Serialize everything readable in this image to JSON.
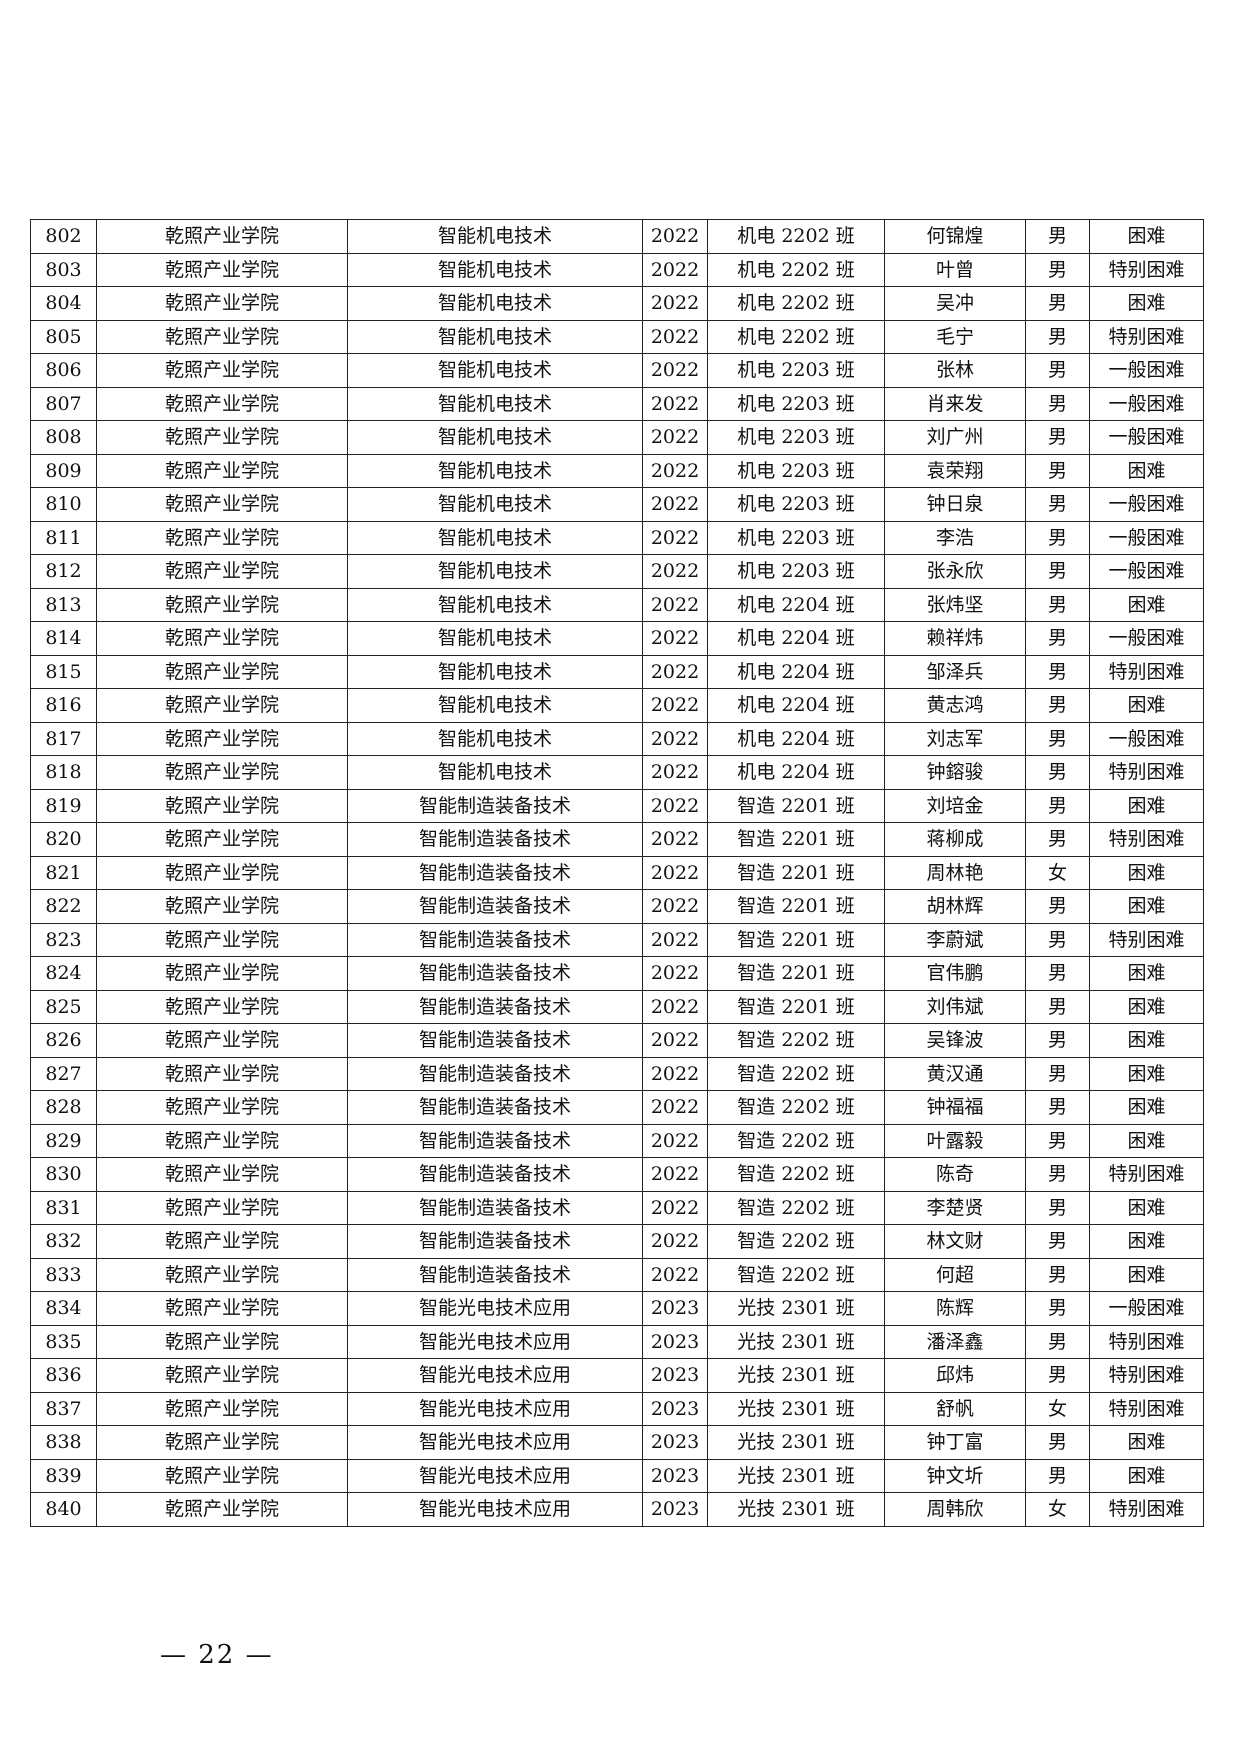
{
  "rows": [
    [
      "802",
      "乾照产业学院",
      "智能机电技术",
      "2022",
      "机电 2202 班",
      "何锦煌",
      "男",
      "困难"
    ],
    [
      "803",
      "乾照产业学院",
      "智能机电技术",
      "2022",
      "机电 2202 班",
      "叶曾",
      "男",
      "特别困难"
    ],
    [
      "804",
      "乾照产业学院",
      "智能机电技术",
      "2022",
      "机电 2202 班",
      "吴冲",
      "男",
      "困难"
    ],
    [
      "805",
      "乾照产业学院",
      "智能机电技术",
      "2022",
      "机电 2202 班",
      "毛宁",
      "男",
      "特别困难"
    ],
    [
      "806",
      "乾照产业学院",
      "智能机电技术",
      "2022",
      "机电 2203 班",
      "张林",
      "男",
      "一般困难"
    ],
    [
      "807",
      "乾照产业学院",
      "智能机电技术",
      "2022",
      "机电 2203 班",
      "肖来发",
      "男",
      "一般困难"
    ],
    [
      "808",
      "乾照产业学院",
      "智能机电技术",
      "2022",
      "机电 2203 班",
      "刘广州",
      "男",
      "一般困难"
    ],
    [
      "809",
      "乾照产业学院",
      "智能机电技术",
      "2022",
      "机电 2203 班",
      "袁荣翔",
      "男",
      "困难"
    ],
    [
      "810",
      "乾照产业学院",
      "智能机电技术",
      "2022",
      "机电 2203 班",
      "钟日泉",
      "男",
      "一般困难"
    ],
    [
      "811",
      "乾照产业学院",
      "智能机电技术",
      "2022",
      "机电 2203 班",
      "李浩",
      "男",
      "一般困难"
    ],
    [
      "812",
      "乾照产业学院",
      "智能机电技术",
      "2022",
      "机电 2203 班",
      "张永欣",
      "男",
      "一般困难"
    ],
    [
      "813",
      "乾照产业学院",
      "智能机电技术",
      "2022",
      "机电 2204 班",
      "张炜坚",
      "男",
      "困难"
    ],
    [
      "814",
      "乾照产业学院",
      "智能机电技术",
      "2022",
      "机电 2204 班",
      "赖祥炜",
      "男",
      "一般困难"
    ],
    [
      "815",
      "乾照产业学院",
      "智能机电技术",
      "2022",
      "机电 2204 班",
      "邹泽兵",
      "男",
      "特别困难"
    ],
    [
      "816",
      "乾照产业学院",
      "智能机电技术",
      "2022",
      "机电 2204 班",
      "黄志鸿",
      "男",
      "困难"
    ],
    [
      "817",
      "乾照产业学院",
      "智能机电技术",
      "2022",
      "机电 2204 班",
      "刘志军",
      "男",
      "一般困难"
    ],
    [
      "818",
      "乾照产业学院",
      "智能机电技术",
      "2022",
      "机电 2204 班",
      "钟鎔骏",
      "男",
      "特别困难"
    ],
    [
      "819",
      "乾照产业学院",
      "智能制造装备技术",
      "2022",
      "智造 2201 班",
      "刘培金",
      "男",
      "困难"
    ],
    [
      "820",
      "乾照产业学院",
      "智能制造装备技术",
      "2022",
      "智造 2201 班",
      "蒋柳成",
      "男",
      "特别困难"
    ],
    [
      "821",
      "乾照产业学院",
      "智能制造装备技术",
      "2022",
      "智造 2201 班",
      "周林艳",
      "女",
      "困难"
    ],
    [
      "822",
      "乾照产业学院",
      "智能制造装备技术",
      "2022",
      "智造 2201 班",
      "胡林辉",
      "男",
      "困难"
    ],
    [
      "823",
      "乾照产业学院",
      "智能制造装备技术",
      "2022",
      "智造 2201 班",
      "李蔚斌",
      "男",
      "特别困难"
    ],
    [
      "824",
      "乾照产业学院",
      "智能制造装备技术",
      "2022",
      "智造 2201 班",
      "官伟鹏",
      "男",
      "困难"
    ],
    [
      "825",
      "乾照产业学院",
      "智能制造装备技术",
      "2022",
      "智造 2201 班",
      "刘伟斌",
      "男",
      "困难"
    ],
    [
      "826",
      "乾照产业学院",
      "智能制造装备技术",
      "2022",
      "智造 2202 班",
      "吴锋波",
      "男",
      "困难"
    ],
    [
      "827",
      "乾照产业学院",
      "智能制造装备技术",
      "2022",
      "智造 2202 班",
      "黄汉通",
      "男",
      "困难"
    ],
    [
      "828",
      "乾照产业学院",
      "智能制造装备技术",
      "2022",
      "智造 2202 班",
      "钟福福",
      "男",
      "困难"
    ],
    [
      "829",
      "乾照产业学院",
      "智能制造装备技术",
      "2022",
      "智造 2202 班",
      "叶露毅",
      "男",
      "困难"
    ],
    [
      "830",
      "乾照产业学院",
      "智能制造装备技术",
      "2022",
      "智造 2202 班",
      "陈奇",
      "男",
      "特别困难"
    ],
    [
      "831",
      "乾照产业学院",
      "智能制造装备技术",
      "2022",
      "智造 2202 班",
      "李楚贤",
      "男",
      "困难"
    ],
    [
      "832",
      "乾照产业学院",
      "智能制造装备技术",
      "2022",
      "智造 2202 班",
      "林文财",
      "男",
      "困难"
    ],
    [
      "833",
      "乾照产业学院",
      "智能制造装备技术",
      "2022",
      "智造 2202 班",
      "何超",
      "男",
      "困难"
    ],
    [
      "834",
      "乾照产业学院",
      "智能光电技术应用",
      "2023",
      "光技 2301 班",
      "陈辉",
      "男",
      "一般困难"
    ],
    [
      "835",
      "乾照产业学院",
      "智能光电技术应用",
      "2023",
      "光技 2301 班",
      "潘泽鑫",
      "男",
      "特别困难"
    ],
    [
      "836",
      "乾照产业学院",
      "智能光电技术应用",
      "2023",
      "光技 2301 班",
      "邱炜",
      "男",
      "特别困难"
    ],
    [
      "837",
      "乾照产业学院",
      "智能光电技术应用",
      "2023",
      "光技 2301 班",
      "舒帆",
      "女",
      "特别困难"
    ],
    [
      "838",
      "乾照产业学院",
      "智能光电技术应用",
      "2023",
      "光技 2301 班",
      "钟丁富",
      "男",
      "困难"
    ],
    [
      "839",
      "乾照产业学院",
      "智能光电技术应用",
      "2023",
      "光技 2301 班",
      "钟文圻",
      "男",
      "困难"
    ],
    [
      "840",
      "乾照产业学院",
      "智能光电技术应用",
      "2023",
      "光技 2301 班",
      "周韩欣",
      "女",
      "特别困难"
    ]
  ],
  "footer": {
    "page_number": "— 22 —"
  }
}
